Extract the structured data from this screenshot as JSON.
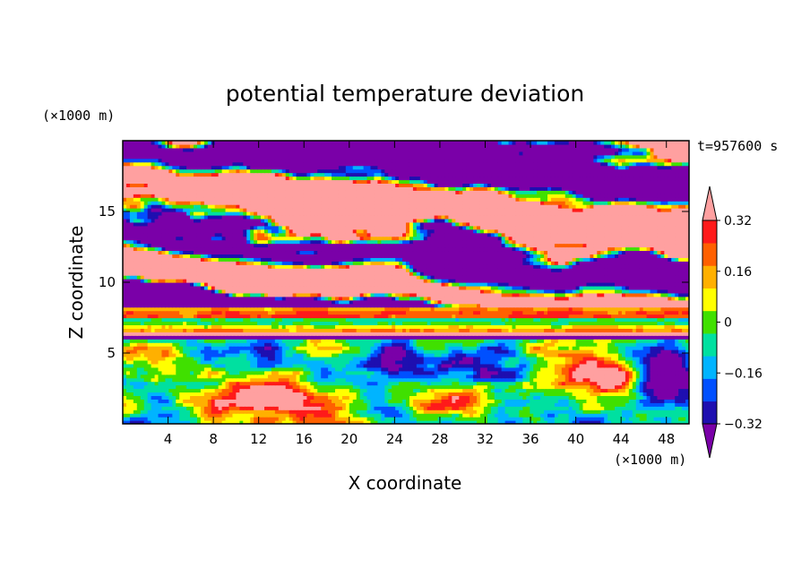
{
  "chart_data": {
    "type": "heatmap",
    "title": "potential temperature deviation",
    "xlabel": "X coordinate",
    "ylabel": "Z coordinate",
    "x_unit": "(×1000 m)",
    "y_unit": "(×1000 m)",
    "time_label": "t=957600 s",
    "xlim": [
      0,
      50
    ],
    "ylim": [
      0,
      20
    ],
    "x_ticks": [
      4,
      8,
      12,
      16,
      20,
      24,
      28,
      32,
      36,
      40,
      44,
      48
    ],
    "y_ticks": [
      5,
      10,
      15
    ],
    "grid": false,
    "colorbar": {
      "placement": "right",
      "extend": "both",
      "levels": [
        -0.4,
        -0.32,
        -0.24,
        -0.16,
        -0.08,
        0,
        0.08,
        0.16,
        0.24,
        0.32,
        0.4
      ],
      "labels": [
        "0.32",
        "0.16",
        "0",
        "−0.16",
        "−0.32"
      ],
      "label_values": [
        0.32,
        0.16,
        0,
        -0.16,
        -0.32
      ],
      "colors": [
        "#7a00a8",
        "#1e0fb0",
        "#0050ff",
        "#00b4ff",
        "#00e0a0",
        "#40e000",
        "#ffff00",
        "#ffb000",
        "#ff6000",
        "#ff1a1a",
        "#ffa0a0"
      ]
    },
    "layers_approx": [
      {
        "z": [
          0,
          6
        ],
        "desc_value": "mixed"
      },
      {
        "z": [
          6,
          8
        ],
        "desc_value": "banded"
      },
      {
        "z": [
          8,
          20
        ],
        "desc_value": "alternating"
      }
    ]
  }
}
